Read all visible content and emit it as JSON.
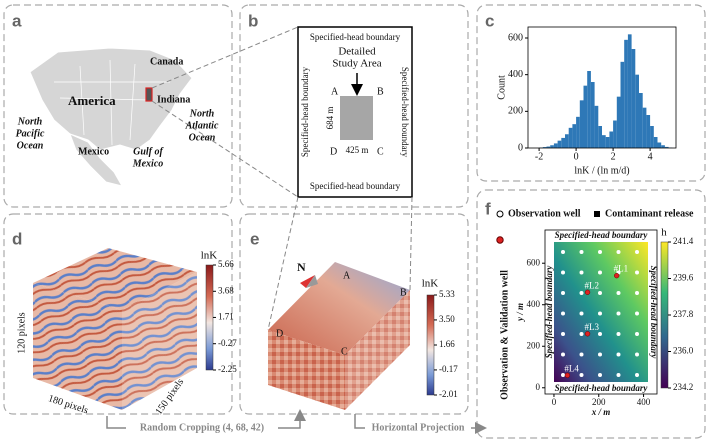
{
  "panel_labels": [
    "a",
    "b",
    "c",
    "d",
    "e",
    "f"
  ],
  "map": {
    "canada": "Canada",
    "america": "America",
    "indiana": "Indiana",
    "north_pacific": [
      "North",
      "Pacific",
      "Ocean"
    ],
    "mexico": "Mexico",
    "gulf": [
      "Gulf of",
      "Mexico"
    ],
    "north_atlantic": [
      "North",
      "Atlantic",
      "Ocean"
    ]
  },
  "study_area": {
    "boundary_top": "Specified-head boundary",
    "boundary_bottom": "Specified-head boundary",
    "boundary_left": "Specified-head boundary",
    "boundary_right": "Specified-head boundary",
    "title": [
      "Detailed",
      "Study Area"
    ],
    "corners": [
      "A",
      "B",
      "C",
      "D"
    ],
    "height": "684 m",
    "width": "425 m"
  },
  "chart_data": {
    "type": "histogram",
    "bins": [
      -2.0,
      -1.8,
      -1.6,
      -1.4,
      -1.2,
      -1.0,
      -0.8,
      -0.6,
      -0.4,
      -0.2,
      0.0,
      0.2,
      0.4,
      0.6,
      0.8,
      1.0,
      1.2,
      1.4,
      1.6,
      1.8,
      2.0,
      2.2,
      2.4,
      2.6,
      2.8,
      3.0,
      3.2,
      3.4,
      3.6,
      3.8,
      4.0,
      4.2,
      4.4,
      4.6,
      4.8,
      5.0,
      5.2
    ],
    "counts": [
      2,
      5,
      8,
      15,
      25,
      40,
      55,
      75,
      110,
      130,
      170,
      260,
      340,
      420,
      360,
      230,
      120,
      70,
      60,
      90,
      150,
      280,
      470,
      590,
      620,
      540,
      400,
      300,
      220,
      180,
      120,
      60,
      30,
      15,
      6,
      2
    ],
    "color": "#2e78b7",
    "xlim": [
      -2.6,
      5.4
    ],
    "ylim": [
      0,
      660
    ],
    "xticks": [
      -2,
      0,
      2,
      4
    ],
    "yticks": [
      0,
      200,
      400,
      600
    ],
    "x_label": "lnK / (ln m/d)",
    "y_label": "Count"
  },
  "cube_full": {
    "colorbar_title": "lnK",
    "colorbar_ticks": [
      5.66,
      3.68,
      1.71,
      -0.27,
      -2.25
    ],
    "dims": [
      "120 pixels",
      "180 pixels",
      "150 pixels"
    ]
  },
  "cube_crop": {
    "north": "N",
    "corners": [
      "A",
      "B",
      "C",
      "D"
    ],
    "colorbar_title": "lnK",
    "colorbar_ticks": [
      5.33,
      {
        "value": 3.5,
        "label": "3.50"
      },
      1.66,
      -0.17,
      -2.01
    ]
  },
  "arrows": {
    "crop": "Random Cropping (4, 68, 42)",
    "projection": "Horizontal Projection"
  },
  "head_map": {
    "legend": [
      "Observation well",
      "Contaminant release"
    ],
    "side_legend": "Observation & Validation well",
    "boundary_top": "Specified-head boundary",
    "boundary_bottom": "Specified-head boundary",
    "boundary_left": "Specified-head boundary",
    "boundary_right": "Specified-head boundary",
    "x_label": "x / m",
    "y_label": "y / m",
    "xticks": [
      0,
      200,
      400
    ],
    "yticks": [
      0,
      200,
      400,
      600
    ],
    "xlim": [
      -40,
      460
    ],
    "ylim": [
      -30,
      760
    ],
    "colorbar_title": "h",
    "colorbar_ticks": [
      241.4,
      239.6,
      237.8,
      {
        "value": 236,
        "label": "236.0"
      },
      234.2
    ],
    "wells": [
      {
        "label": "#L1",
        "x": 280,
        "y": 540
      },
      {
        "label": "#L2",
        "x": 150,
        "y": 460
      },
      {
        "label": "#L3",
        "x": 150,
        "y": 260
      },
      {
        "label": "#L4",
        "x": 60,
        "y": 60
      }
    ]
  }
}
